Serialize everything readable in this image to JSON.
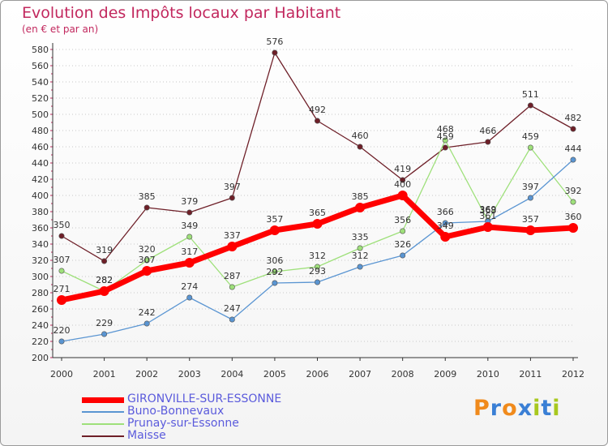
{
  "chart_data": {
    "type": "line",
    "title": "Evolution des Impôts locaux par Habitant",
    "subtitle": "(en € et par an)",
    "xlabel": "",
    "ylabel": "",
    "x": [
      "2000",
      "2001",
      "2002",
      "2003",
      "2004",
      "2005",
      "2006",
      "2007",
      "2008",
      "2009",
      "2010",
      "2011",
      "2012"
    ],
    "ylim": [
      200,
      580
    ],
    "ytick_step": 20,
    "grid": "horizontal dotted",
    "legend_position": "bottom-left",
    "series": [
      {
        "name": "Maisse",
        "color": "#6e1f28",
        "values": [
          350,
          319,
          385,
          379,
          397,
          576,
          492,
          460,
          419,
          459,
          466,
          511,
          482
        ]
      },
      {
        "name": "Prunay-sur-Essonne",
        "color": "#9ee07a",
        "values": [
          307,
          282,
          320,
          349,
          287,
          306,
          312,
          335,
          356,
          468,
          369,
          459,
          392
        ]
      },
      {
        "name": "Buno-Bonnevaux",
        "color": "#5a95d2",
        "values": [
          220,
          229,
          242,
          274,
          247,
          292,
          293,
          312,
          326,
          366,
          368,
          397,
          444
        ]
      },
      {
        "name": "GIRONVILLE-SUR-ESSONNE",
        "color": "#ff0000",
        "values": [
          271,
          282,
          307,
          317,
          337,
          357,
          365,
          385,
          400,
          349,
          361,
          357,
          360
        ]
      }
    ]
  },
  "legend": [
    {
      "name": "GIRONVILLE-SUR-ESSONNE",
      "color": "#ff0000"
    },
    {
      "name": "Buno-Bonnevaux",
      "color": "#5a95d2"
    },
    {
      "name": "Prunay-sur-Essonne",
      "color": "#9ee07a"
    },
    {
      "name": "Maisse",
      "color": "#6e1f28"
    }
  ],
  "logo": {
    "text": "Proxiti",
    "letter_colors": [
      "#f08a1c",
      "#3a7fd5",
      "#f08a1c",
      "#3a7fd5",
      "#a8c81f",
      "#3a7fd5",
      "#a8c81f"
    ]
  }
}
